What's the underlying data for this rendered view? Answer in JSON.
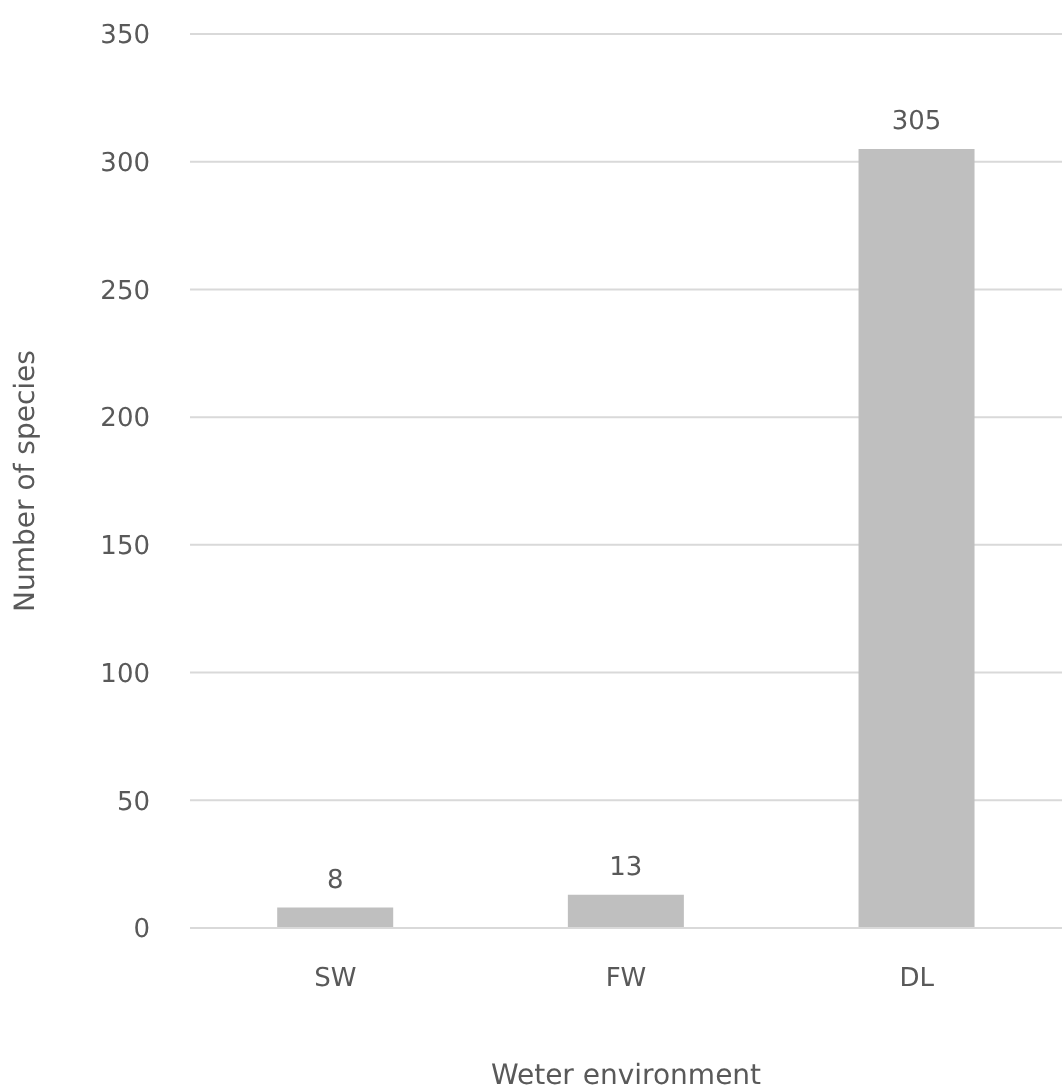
{
  "chart_data": {
    "type": "bar",
    "xlabel": "Weter environment",
    "ylabel": "Number of species",
    "categories": [
      "SW",
      "FW",
      "DL"
    ],
    "values": [
      8,
      13,
      305
    ],
    "color": "#bfbfbf",
    "ylim": [
      0,
      350
    ],
    "yticks": [
      0,
      50,
      100,
      150,
      200,
      250,
      300,
      350
    ],
    "grid": "y",
    "data_labels": true
  }
}
